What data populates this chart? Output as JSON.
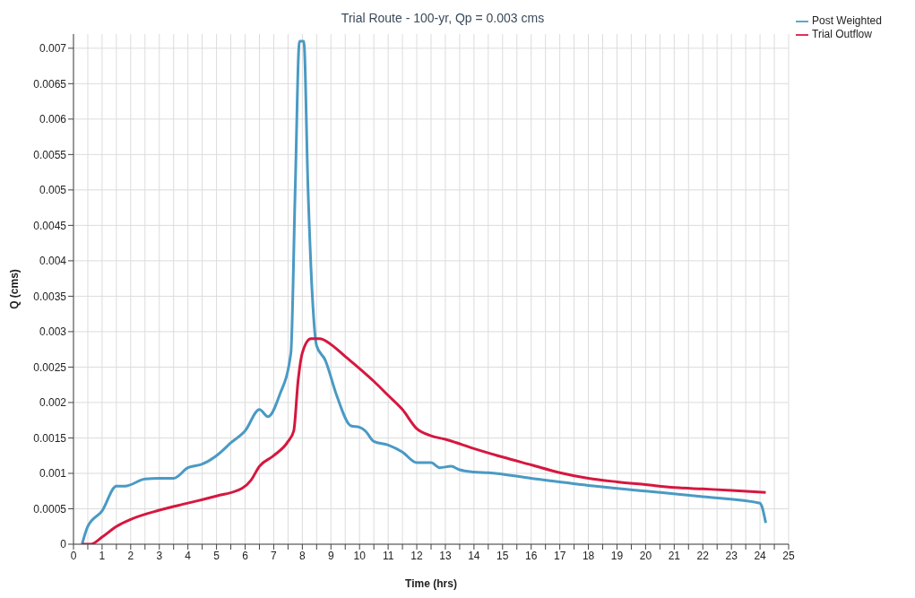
{
  "chart_data": {
    "type": "line",
    "title": "Trial Route - 100-yr, Qp = 0.003 cms",
    "xlabel": "Time (hrs)",
    "ylabel": "Q (cms)",
    "xlim": [
      0,
      25
    ],
    "ylim": [
      0,
      0.0072
    ],
    "xticks": [
      0,
      {
        "value": 0.5,
        "label": null
      },
      1,
      {
        "value": 1.5,
        "label": null
      },
      2,
      {
        "value": 2.5,
        "label": null
      },
      3,
      {
        "value": 3.5,
        "label": null
      },
      4,
      {
        "value": 4.5,
        "label": null
      },
      5,
      {
        "value": 5.5,
        "label": null
      },
      6,
      {
        "value": 6.5,
        "label": null
      },
      7,
      {
        "value": 7.5,
        "label": null
      },
      8,
      {
        "value": 8.5,
        "label": null
      },
      9,
      {
        "value": 9.5,
        "label": null
      },
      10,
      {
        "value": 10.5,
        "label": null
      },
      11,
      {
        "value": 11.5,
        "label": null
      },
      12,
      {
        "value": 12.5,
        "label": null
      },
      13,
      {
        "value": 13.5,
        "label": null
      },
      14,
      {
        "value": 14.5,
        "label": null
      },
      15,
      {
        "value": 15.5,
        "label": null
      },
      16,
      {
        "value": 16.5,
        "label": null
      },
      17,
      {
        "value": 17.5,
        "label": null
      },
      18,
      {
        "value": 18.5,
        "label": null
      },
      19,
      {
        "value": 19.5,
        "label": null
      },
      20,
      {
        "value": 20.5,
        "label": null
      },
      21,
      {
        "value": 21.5,
        "label": null
      },
      22,
      {
        "value": 22.5,
        "label": null
      },
      23,
      {
        "value": 23.5,
        "label": null
      },
      24,
      {
        "value": 24.5,
        "label": null
      },
      25
    ],
    "yticks": [
      0,
      0.0005,
      0.001,
      0.0015,
      0.002,
      0.0025,
      0.003,
      0.0035,
      0.004,
      0.0045,
      0.005,
      0.0055,
      0.006,
      0.0065,
      0.007
    ],
    "grid": true,
    "legend": "top right",
    "marker": "none",
    "line_style": "solid",
    "series": [
      {
        "name": "Post Weighted",
        "color": "#4a9ac4",
        "x": [
          0.3,
          0.5,
          1.0,
          1.5,
          1.8,
          2.5,
          3.0,
          3.5,
          4.0,
          4.5,
          5.0,
          5.5,
          6.0,
          6.5,
          6.8,
          7.2,
          7.6,
          7.75,
          7.9,
          8.05,
          8.2,
          8.35,
          8.5,
          8.8,
          9.2,
          9.7,
          10.0,
          10.2,
          10.5,
          11.0,
          11.5,
          12.0,
          12.5,
          12.8,
          13.2,
          13.5,
          14.0,
          14.5,
          16,
          18,
          20,
          22,
          24,
          24.05,
          24.2
        ],
        "values": [
          0,
          0.00025,
          0.00047,
          0.00082,
          0.00082,
          0.00092,
          0.00093,
          0.00093,
          0.00108,
          0.00113,
          0.00125,
          0.00143,
          0.0016,
          0.0019,
          0.0018,
          0.0021,
          0.0027,
          0.005,
          0.0071,
          0.0071,
          0.005,
          0.0035,
          0.0028,
          0.0026,
          0.0021,
          0.00167,
          0.00165,
          0.0016,
          0.00145,
          0.0014,
          0.0013,
          0.00115,
          0.00115,
          0.00108,
          0.0011,
          0.00105,
          0.00102,
          0.00101,
          0.00093,
          0.00083,
          0.00075,
          0.00067,
          0.00058,
          0.00055,
          0.0003
        ]
      },
      {
        "name": "Trial Outflow",
        "color": "#d6173f",
        "x": [
          0.3,
          0.6,
          1.0,
          1.5,
          2,
          3,
          4,
          5,
          5.9,
          6.2,
          6.5,
          7.0,
          7.5,
          7.7,
          7.85,
          8.0,
          8.3,
          8.6,
          9.0,
          9.5,
          10,
          10.5,
          11,
          11.5,
          12,
          12.5,
          13,
          14,
          15,
          16,
          17,
          18,
          19,
          20,
          21,
          22,
          23,
          24.2
        ],
        "values": [
          0,
          0,
          0.0001,
          0.00025,
          0.00035,
          0.00048,
          0.00058,
          0.00068,
          0.00079,
          0.0009,
          0.0011,
          0.00125,
          0.00145,
          0.0016,
          0.0023,
          0.0027,
          0.0029,
          0.0029,
          0.00282,
          0.00265,
          0.00248,
          0.0023,
          0.0021,
          0.0019,
          0.00163,
          0.00153,
          0.00148,
          0.00135,
          0.00123,
          0.00112,
          0.00101,
          0.00093,
          0.00088,
          0.00084,
          0.0008,
          0.00078,
          0.00076,
          0.00073
        ]
      }
    ]
  }
}
